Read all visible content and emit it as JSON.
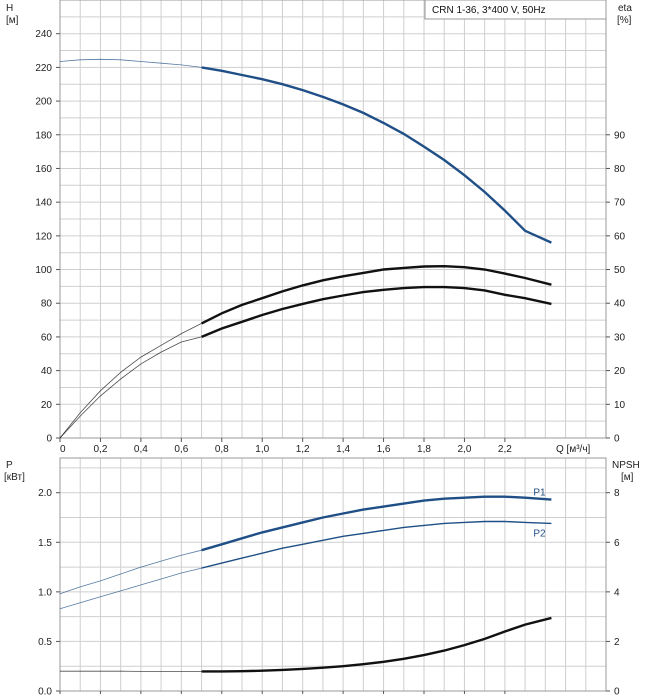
{
  "legend": {
    "text": "CRN 1-36, 3*400 V, 50Hz"
  },
  "colors": {
    "blue": "#1f4f86",
    "black": "#111111",
    "grid": "#cfcfcf",
    "thin_gray": "#8a8a8a"
  },
  "chart_data": [
    {
      "type": "line",
      "x_label": "Q [м³/ч]",
      "x_ticks": [
        0,
        0.2,
        0.4,
        0.6,
        0.8,
        1.0,
        1.2,
        1.4,
        1.6,
        1.8,
        2.0,
        2.2
      ],
      "x_tick_labels": [
        "0",
        "0,2",
        "0,4",
        "0,6",
        "0,8",
        "1,0",
        "1,2",
        "1,4",
        "1,6",
        "1,8",
        "2,0",
        "2,2"
      ],
      "xlim": [
        0,
        2.7
      ],
      "left_axis": {
        "label_top": "H",
        "label_unit": "[м]",
        "lim": [
          0,
          260
        ],
        "ticks": [
          0,
          20,
          40,
          60,
          80,
          100,
          120,
          140,
          160,
          180,
          200,
          220,
          240
        ]
      },
      "right_axis": {
        "label_top": "eta",
        "label_unit": "[%]",
        "lim": [
          0,
          130
        ],
        "ticks": [
          0,
          10,
          20,
          30,
          40,
          50,
          60,
          70,
          80,
          90
        ]
      },
      "grid": true,
      "series": [
        {
          "axis": "left",
          "color": "blue",
          "x": [
            0,
            0.1,
            0.2,
            0.3,
            0.4,
            0.5,
            0.6,
            0.7,
            0.8,
            0.9,
            1.0,
            1.1,
            1.2,
            1.3,
            1.4,
            1.5,
            1.6,
            1.7,
            1.8,
            1.9,
            2.0,
            2.1,
            2.2,
            2.3,
            2.43
          ],
          "y": [
            223.5,
            224.5,
            224.8,
            224.5,
            223.5,
            222.5,
            221.5,
            220,
            218,
            215.5,
            213,
            210,
            206.5,
            202.5,
            198,
            193,
            187,
            180.5,
            173,
            165,
            156,
            146,
            135,
            123,
            116
          ],
          "highlight_from": 0.7
        },
        {
          "axis": "right",
          "color": "black",
          "x": [
            0,
            0.1,
            0.2,
            0.3,
            0.4,
            0.5,
            0.6,
            0.7,
            0.8,
            0.9,
            1.0,
            1.1,
            1.2,
            1.3,
            1.4,
            1.5,
            1.6,
            1.7,
            1.8,
            1.9,
            2.0,
            2.1,
            2.2,
            2.3,
            2.43
          ],
          "y": [
            0,
            7.5,
            14,
            19.5,
            24,
            27.5,
            31,
            34,
            37,
            39.5,
            41.5,
            43.5,
            45.3,
            46.8,
            48,
            49,
            50,
            50.5,
            50.9,
            51,
            50.7,
            50,
            48.8,
            47.5,
            45.5
          ],
          "highlight_from": 0.7
        },
        {
          "axis": "right",
          "color": "black",
          "x": [
            0,
            0.1,
            0.2,
            0.3,
            0.4,
            0.5,
            0.6,
            0.7,
            0.8,
            0.9,
            1.0,
            1.1,
            1.2,
            1.3,
            1.4,
            1.5,
            1.6,
            1.7,
            1.8,
            1.9,
            2.0,
            2.1,
            2.2,
            2.3,
            2.43
          ],
          "y": [
            0,
            6.5,
            12.5,
            17.5,
            22,
            25.5,
            28.5,
            30,
            32.5,
            34.5,
            36.5,
            38.3,
            39.8,
            41.2,
            42.3,
            43.3,
            44,
            44.5,
            44.8,
            44.8,
            44.5,
            43.8,
            42.5,
            41.5,
            39.8
          ],
          "highlight_from": 0.7
        }
      ]
    },
    {
      "type": "line",
      "xlim": [
        0,
        2.7
      ],
      "left_axis": {
        "label_top": "P",
        "label_unit": "[кВт]",
        "lim": [
          0,
          2.35
        ],
        "ticks": [
          0.0,
          0.5,
          1.0,
          1.5,
          2.0
        ],
        "tick_labels": [
          "0.0",
          "0.5",
          "1.0",
          "1.5",
          "2.0"
        ]
      },
      "right_axis": {
        "label_top": "NPSH",
        "label_unit": "[м]",
        "lim": [
          0,
          9.4
        ],
        "ticks": [
          0,
          2,
          4,
          6,
          8
        ]
      },
      "grid": true,
      "series": [
        {
          "name": "P1",
          "axis": "left",
          "color": "blue",
          "x": [
            0,
            0.1,
            0.2,
            0.3,
            0.4,
            0.5,
            0.6,
            0.7,
            0.8,
            0.9,
            1.0,
            1.1,
            1.2,
            1.3,
            1.4,
            1.5,
            1.6,
            1.7,
            1.8,
            1.9,
            2.0,
            2.1,
            2.2,
            2.3,
            2.43
          ],
          "y": [
            0.98,
            1.05,
            1.11,
            1.18,
            1.25,
            1.31,
            1.37,
            1.42,
            1.48,
            1.54,
            1.6,
            1.65,
            1.7,
            1.75,
            1.79,
            1.83,
            1.86,
            1.89,
            1.92,
            1.94,
            1.95,
            1.96,
            1.96,
            1.95,
            1.93
          ],
          "highlight_from": 0.7
        },
        {
          "name": "P2",
          "axis": "left",
          "color": "blue",
          "x": [
            0,
            0.1,
            0.2,
            0.3,
            0.4,
            0.5,
            0.6,
            0.7,
            0.8,
            0.9,
            1.0,
            1.1,
            1.2,
            1.3,
            1.4,
            1.5,
            1.6,
            1.7,
            1.8,
            1.9,
            2.0,
            2.1,
            2.2,
            2.3,
            2.43
          ],
          "y": [
            0.83,
            0.89,
            0.95,
            1.01,
            1.07,
            1.13,
            1.19,
            1.24,
            1.29,
            1.34,
            1.39,
            1.44,
            1.48,
            1.52,
            1.56,
            1.59,
            1.62,
            1.65,
            1.67,
            1.69,
            1.7,
            1.71,
            1.71,
            1.7,
            1.69
          ],
          "highlight_from": 0.7
        },
        {
          "name": "NPSH",
          "axis": "right",
          "color": "black",
          "x": [
            0,
            0.1,
            0.2,
            0.3,
            0.4,
            0.5,
            0.6,
            0.7,
            0.8,
            0.9,
            1.0,
            1.1,
            1.2,
            1.3,
            1.4,
            1.5,
            1.6,
            1.7,
            1.8,
            1.9,
            2.0,
            2.1,
            2.2,
            2.3,
            2.43
          ],
          "y": [
            0.8,
            0.8,
            0.8,
            0.8,
            0.79,
            0.79,
            0.79,
            0.79,
            0.79,
            0.8,
            0.82,
            0.85,
            0.89,
            0.94,
            1.0,
            1.08,
            1.18,
            1.3,
            1.45,
            1.63,
            1.85,
            2.1,
            2.4,
            2.68,
            2.95
          ],
          "highlight_from": 0.7
        }
      ]
    }
  ]
}
